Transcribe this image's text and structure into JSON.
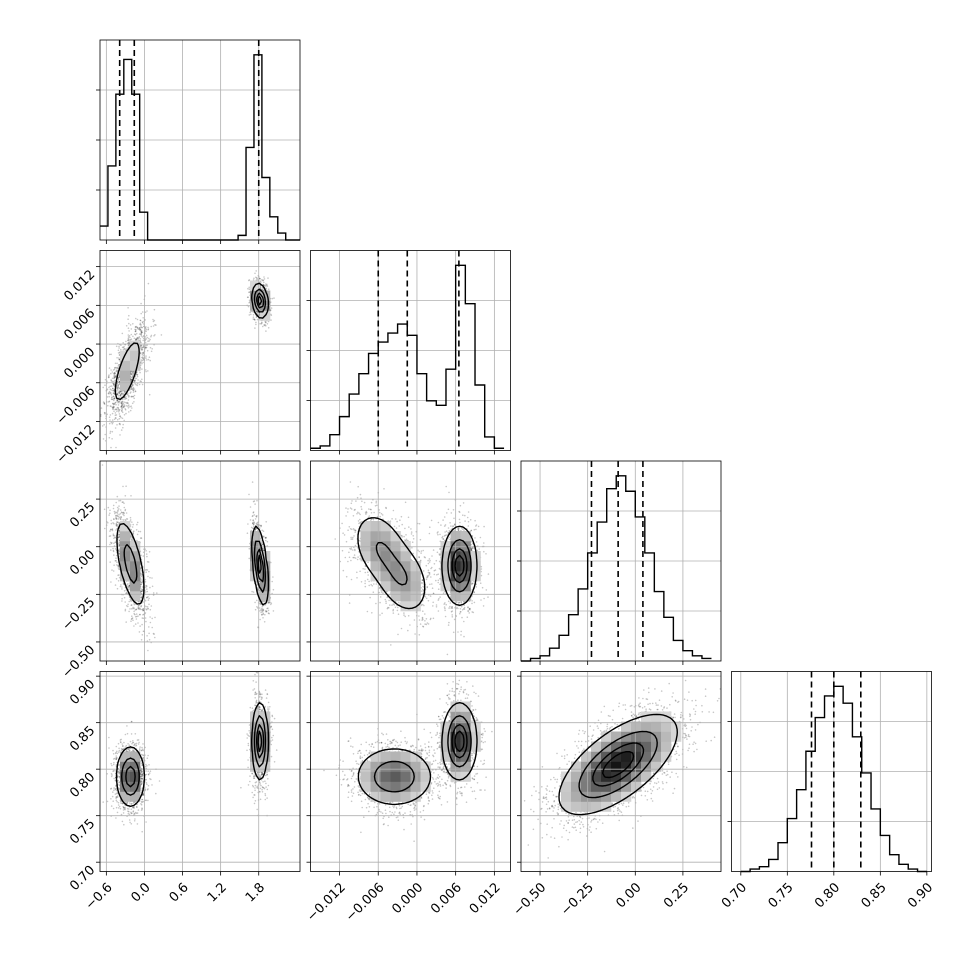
{
  "chart_data": {
    "type": "corner",
    "title": "",
    "parameters": [
      "",
      "",
      "",
      ""
    ],
    "axes": [
      {
        "range": [
          -0.7,
          2.45
        ],
        "ticks": [
          -0.6,
          0.0,
          0.6,
          1.2,
          1.8
        ],
        "tick_labels": [
          "−0.6",
          "0.0",
          "0.6",
          "1.2",
          "1.8"
        ]
      },
      {
        "range": [
          -0.0165,
          0.0145
        ],
        "ticks": [
          -0.012,
          -0.006,
          0.0,
          0.006,
          0.012
        ],
        "tick_labels": [
          "−0.012",
          "−0.006",
          "0.000",
          "0.006",
          "0.012"
        ]
      },
      {
        "range": [
          -0.6,
          0.45
        ],
        "ticks": [
          -0.5,
          -0.25,
          0.0,
          0.25
        ],
        "tick_labels": [
          "−0.50",
          "−0.25",
          "0.00",
          "0.25"
        ]
      },
      {
        "range": [
          0.69,
          0.905
        ],
        "ticks": [
          0.7,
          0.75,
          0.8,
          0.85,
          0.9
        ],
        "tick_labels": [
          "0.70",
          "0.75",
          "0.80",
          "0.85",
          "0.90"
        ]
      }
    ],
    "histograms": [
      {
        "edges": [
          -0.7,
          -0.575,
          -0.45,
          -0.325,
          -0.2,
          -0.075,
          0.05,
          0.175,
          1.475,
          1.6,
          1.725,
          1.85,
          1.975,
          2.1,
          2.225,
          2.35,
          2.45
        ],
        "counts": [
          0.06,
          0.32,
          0.63,
          0.78,
          0.63,
          0.12,
          0.0,
          0.0,
          0.02,
          0.4,
          0.8,
          0.27,
          0.1,
          0.03,
          0.0,
          0.0
        ],
        "quantiles": [
          -0.39,
          -0.16,
          1.8
        ]
      },
      {
        "edges": [
          -0.0165,
          -0.015,
          -0.0135,
          -0.012,
          -0.0105,
          -0.009,
          -0.0075,
          -0.006,
          -0.0045,
          -0.003,
          -0.0015,
          0.0,
          0.0015,
          0.003,
          0.0045,
          0.006,
          0.0075,
          0.009,
          0.0105,
          0.012,
          0.0135
        ],
        "counts": [
          0.01,
          0.02,
          0.07,
          0.15,
          0.25,
          0.34,
          0.43,
          0.48,
          0.52,
          0.56,
          0.51,
          0.34,
          0.22,
          0.2,
          0.36,
          0.82,
          0.65,
          0.29,
          0.06,
          0.01
        ],
        "quantiles": [
          -0.006,
          -0.0015,
          0.0065
        ]
      },
      {
        "edges": [
          -0.6,
          -0.55,
          -0.5,
          -0.45,
          -0.4,
          -0.35,
          -0.3,
          -0.25,
          -0.2,
          -0.15,
          -0.1,
          -0.05,
          0.0,
          0.05,
          0.1,
          0.15,
          0.2,
          0.25,
          0.3,
          0.35,
          0.4
        ],
        "counts": [
          0.0,
          0.01,
          0.02,
          0.05,
          0.1,
          0.18,
          0.28,
          0.42,
          0.54,
          0.67,
          0.72,
          0.66,
          0.56,
          0.42,
          0.27,
          0.17,
          0.08,
          0.04,
          0.02,
          0.01
        ],
        "quantiles": [
          -0.23,
          -0.09,
          0.04
        ]
      },
      {
        "edges": [
          0.7,
          0.71,
          0.72,
          0.73,
          0.74,
          0.75,
          0.76,
          0.77,
          0.78,
          0.79,
          0.8,
          0.81,
          0.82,
          0.83,
          0.84,
          0.85,
          0.86,
          0.87,
          0.88,
          0.89,
          0.9
        ],
        "counts": [
          0.0,
          0.01,
          0.02,
          0.05,
          0.12,
          0.22,
          0.34,
          0.5,
          0.64,
          0.73,
          0.77,
          0.7,
          0.56,
          0.41,
          0.26,
          0.15,
          0.07,
          0.03,
          0.01,
          0.0
        ],
        "quantiles": [
          0.776,
          0.8,
          0.829
        ]
      }
    ],
    "joint": [
      {
        "row": 1,
        "col": 0,
        "clusters": [
          {
            "mean": [
              -0.27,
              -0.0042
            ],
            "sd": [
              0.14,
              0.0033
            ],
            "rho": 0.7,
            "weight": 0.55
          },
          {
            "mean": [
              1.82,
              0.0067
            ],
            "sd": [
              0.06,
              0.0013
            ],
            "rho": -0.2,
            "weight": 0.45
          }
        ]
      },
      {
        "row": 2,
        "col": 0,
        "clusters": [
          {
            "mean": [
              -0.22,
              -0.09
            ],
            "sd": [
              0.12,
              0.12
            ],
            "rho": -0.6,
            "weight": 0.55
          },
          {
            "mean": [
              1.82,
              -0.1
            ],
            "sd": [
              0.06,
              0.1
            ],
            "rho": -0.5,
            "weight": 0.45
          }
        ]
      },
      {
        "row": 2,
        "col": 1,
        "clusters": [
          {
            "mean": [
              -0.0058,
              -0.0
            ],
            "sd": [
              0.0022,
              0.1
            ],
            "rho": -0.3,
            "weight": 0.27
          },
          {
            "mean": [
              -0.0022,
              -0.17
            ],
            "sd": [
              0.0022,
              0.1
            ],
            "rho": -0.3,
            "weight": 0.28
          },
          {
            "mean": [
              0.0066,
              -0.1
            ],
            "sd": [
              0.0013,
              0.1
            ],
            "rho": 0.0,
            "weight": 0.45
          }
        ]
      },
      {
        "row": 3,
        "col": 0,
        "clusters": [
          {
            "mean": [
              -0.22,
              0.792
            ],
            "sd": [
              0.11,
              0.016
            ],
            "rho": 0.0,
            "weight": 0.55
          },
          {
            "mean": [
              1.82,
              0.83
            ],
            "sd": [
              0.06,
              0.02
            ],
            "rho": 0.0,
            "weight": 0.45
          }
        ]
      },
      {
        "row": 3,
        "col": 1,
        "clusters": [
          {
            "mean": [
              -0.0035,
              0.792
            ],
            "sd": [
              0.003,
              0.016
            ],
            "rho": 0.0,
            "weight": 0.55
          },
          {
            "mean": [
              0.0066,
              0.83
            ],
            "sd": [
              0.0013,
              0.02
            ],
            "rho": 0.0,
            "weight": 0.45
          }
        ]
      },
      {
        "row": 3,
        "col": 2,
        "clusters": [
          {
            "mean": [
              -0.09,
              0.805
            ],
            "sd": [
              0.15,
              0.026
            ],
            "rho": 0.65,
            "weight": 1.0
          }
        ]
      }
    ],
    "contour_levels": [
      0.118,
      0.393,
      0.675,
      0.865
    ],
    "quantile_lines": "dashed",
    "grid": true
  }
}
